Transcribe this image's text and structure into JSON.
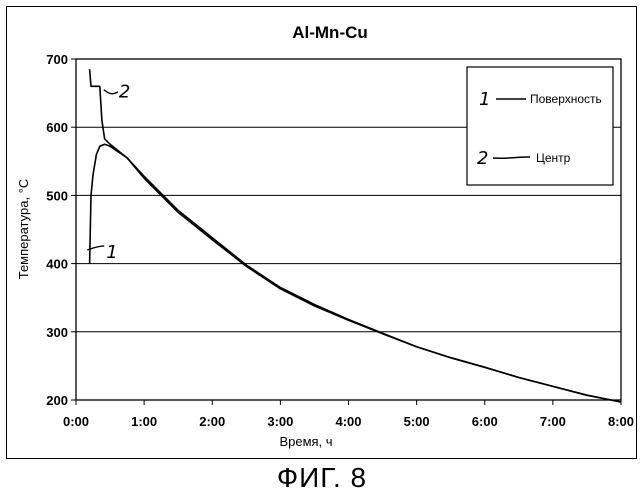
{
  "figure_caption": "ФИГ. 8",
  "chart_data": {
    "type": "line",
    "title": "Al-Mn-Cu",
    "xlabel": "Время, ч",
    "ylabel": "Температура, °C",
    "xlim": [
      0,
      8
    ],
    "ylim": [
      200,
      700
    ],
    "x_ticks": [
      "0:00",
      "1:00",
      "2:00",
      "3:00",
      "4:00",
      "5:00",
      "6:00",
      "7:00",
      "8:00"
    ],
    "y_ticks": [
      "200",
      "300",
      "400",
      "500",
      "600",
      "700"
    ],
    "grid": "horizontal",
    "legend_position": "top-right",
    "series": [
      {
        "name": "Поверхность",
        "marker": "1",
        "color": "#000000",
        "points": [
          [
            0.2,
            400
          ],
          [
            0.21,
            450
          ],
          [
            0.22,
            500
          ],
          [
            0.25,
            530
          ],
          [
            0.3,
            560
          ],
          [
            0.35,
            572
          ],
          [
            0.42,
            575
          ],
          [
            0.5,
            572
          ],
          [
            0.75,
            555
          ],
          [
            1.0,
            528
          ],
          [
            1.5,
            478
          ],
          [
            2.0,
            438
          ],
          [
            2.5,
            398
          ],
          [
            3.0,
            365
          ],
          [
            3.5,
            340
          ],
          [
            4.0,
            318
          ],
          [
            4.5,
            298
          ],
          [
            5.0,
            278
          ],
          [
            5.5,
            262
          ],
          [
            6.0,
            248
          ],
          [
            6.5,
            233
          ],
          [
            7.0,
            220
          ],
          [
            7.5,
            207
          ],
          [
            8.0,
            197
          ]
        ]
      },
      {
        "name": "Центр",
        "marker": "2",
        "color": "#000000",
        "points": [
          [
            0.2,
            685
          ],
          [
            0.22,
            660
          ],
          [
            0.35,
            660
          ],
          [
            0.38,
            610
          ],
          [
            0.42,
            583
          ],
          [
            0.5,
            575
          ],
          [
            0.75,
            555
          ],
          [
            1.0,
            525
          ],
          [
            1.5,
            475
          ],
          [
            2.0,
            435
          ],
          [
            2.5,
            396
          ],
          [
            3.0,
            363
          ],
          [
            3.5,
            338
          ],
          [
            4.0,
            317
          ],
          [
            4.5,
            297
          ],
          [
            5.0,
            278
          ],
          [
            5.5,
            262
          ],
          [
            6.0,
            248
          ],
          [
            6.5,
            233
          ],
          [
            7.0,
            220
          ],
          [
            7.5,
            207
          ],
          [
            8.0,
            197
          ]
        ]
      }
    ],
    "curve_annotations": [
      {
        "text": "1",
        "series": 0
      },
      {
        "text": "2",
        "series": 1
      }
    ]
  }
}
